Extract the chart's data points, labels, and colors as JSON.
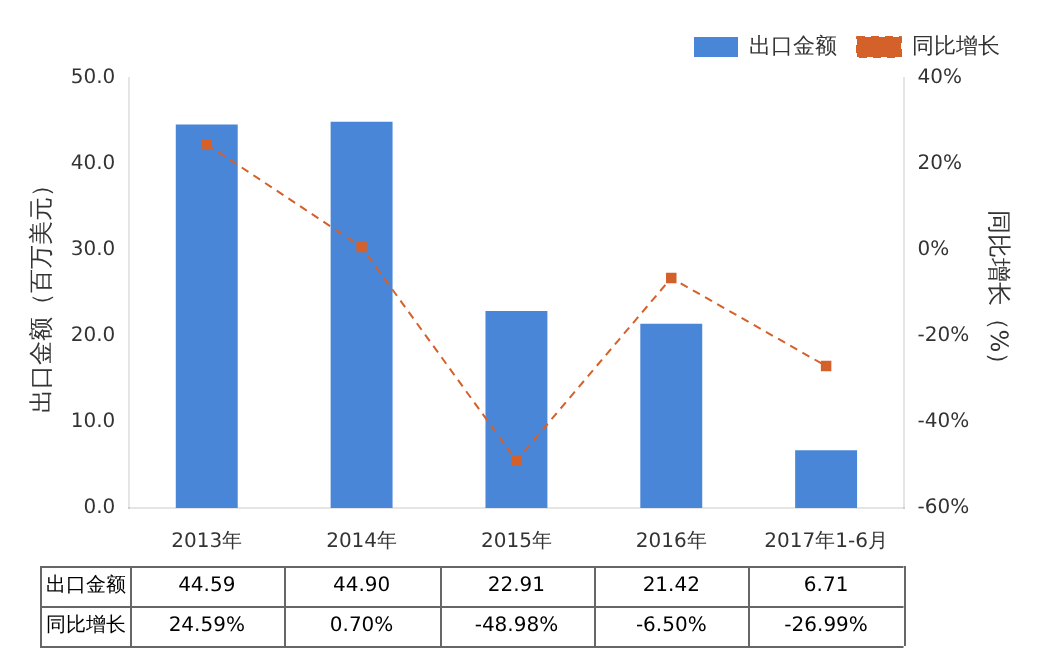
{
  "chart_data": {
    "type": "bar",
    "categories": [
      "2013年",
      "2014年",
      "2015年",
      "2016年",
      "2017年1-6月"
    ],
    "ylabel": "出口金额（百万美元）",
    "y2label": "同比增长（%）",
    "series": [
      {
        "name": "出口金额",
        "color": "#4a86d8",
        "values": [
          44.59,
          44.9,
          22.91,
          21.42,
          6.71
        ],
        "value_labels": [
          "44.59",
          "44.90",
          "22.91",
          "21.42",
          "6.71"
        ]
      },
      {
        "name": "同比增长",
        "type": "line",
        "axis": "y2",
        "color": "#d4602a",
        "values": [
          24.59,
          0.7,
          -48.98,
          -6.5,
          -26.99
        ],
        "value_labels": [
          "24.59%",
          "0.70%",
          "-48.98%",
          "-6.50%",
          "-26.99%"
        ]
      }
    ],
    "ylim": [
      0,
      50
    ],
    "yticks": [
      {
        "value": 0,
        "label": "0.0"
      },
      {
        "value": 10,
        "label": "10.0"
      },
      {
        "value": 20,
        "label": "20.0"
      },
      {
        "value": 30,
        "label": "30.0"
      },
      {
        "value": 40,
        "label": "40.0"
      },
      {
        "value": 50,
        "label": "50.0"
      }
    ],
    "y2lim": [
      -60,
      40
    ],
    "y2ticks": [
      {
        "value": -60,
        "label": "-60%"
      },
      {
        "value": -40,
        "label": "-40%"
      },
      {
        "value": -20,
        "label": "-20%"
      },
      {
        "value": 0,
        "label": "0%"
      },
      {
        "value": 20,
        "label": "20%"
      },
      {
        "value": 40,
        "label": "40%"
      }
    ],
    "legend": "top right",
    "marker": "square",
    "line_style": "dashed",
    "grid": false
  }
}
